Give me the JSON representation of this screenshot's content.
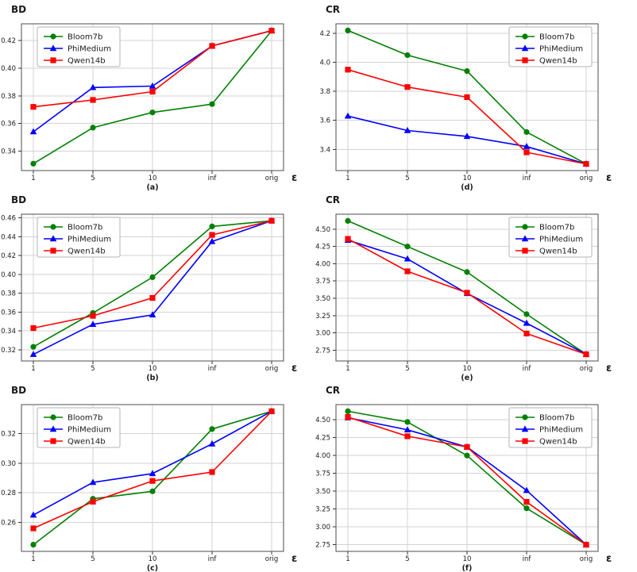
{
  "figure": {
    "background": "#ffffff",
    "grid_color": "#d3d3d3",
    "spine_color": "#4d4d4d",
    "tick_color": "#333333",
    "text_color": "#1a1a1a",
    "legend_entries": [
      {
        "label": "Bloom7b",
        "color": "#008000",
        "marker": "circle"
      },
      {
        "label": "PhiMedium",
        "color": "#0000ff",
        "marker": "triangle"
      },
      {
        "label": "Qwen14b",
        "color": "#ff0000",
        "marker": "square"
      }
    ]
  },
  "chart_data": [
    {
      "id": "a",
      "type": "line",
      "title": "BD",
      "xlabel": "ε",
      "caption": "(a)",
      "grid": true,
      "legend_position": "upper-left",
      "categories": [
        "1",
        "5",
        "10",
        "inf",
        "orig"
      ],
      "ylim": [
        0.326,
        0.432
      ],
      "yticks": [
        {
          "value": 0.34,
          "label": "0.34"
        },
        {
          "value": 0.36,
          "label": "0.36"
        },
        {
          "value": 0.38,
          "label": "0.38"
        },
        {
          "value": 0.4,
          "label": "0.40"
        },
        {
          "value": 0.42,
          "label": "0.42"
        }
      ],
      "series": [
        {
          "name": "Bloom7b",
          "color": "#008000",
          "marker": "circle",
          "values": [
            0.331,
            0.357,
            0.368,
            0.374,
            0.427
          ]
        },
        {
          "name": "PhiMedium",
          "color": "#0000ff",
          "marker": "triangle",
          "values": [
            0.354,
            0.386,
            0.387,
            0.416,
            0.427
          ]
        },
        {
          "name": "Qwen14b",
          "color": "#ff0000",
          "marker": "square",
          "values": [
            0.372,
            0.377,
            0.383,
            0.416,
            0.427
          ]
        }
      ]
    },
    {
      "id": "b",
      "type": "line",
      "title": "BD",
      "xlabel": "ε",
      "caption": "(b)",
      "grid": true,
      "legend_position": "upper-left",
      "categories": [
        "1",
        "5",
        "10",
        "inf",
        "orig"
      ],
      "ylim": [
        0.308,
        0.464
      ],
      "yticks": [
        {
          "value": 0.32,
          "label": "0.32"
        },
        {
          "value": 0.34,
          "label": "0.34"
        },
        {
          "value": 0.36,
          "label": "0.36"
        },
        {
          "value": 0.38,
          "label": "0.38"
        },
        {
          "value": 0.4,
          "label": "0.40"
        },
        {
          "value": 0.42,
          "label": "0.42"
        },
        {
          "value": 0.44,
          "label": "0.44"
        },
        {
          "value": 0.46,
          "label": "0.46"
        }
      ],
      "series": [
        {
          "name": "Bloom7b",
          "color": "#008000",
          "marker": "circle",
          "values": [
            0.323,
            0.359,
            0.397,
            0.451,
            0.457
          ]
        },
        {
          "name": "PhiMedium",
          "color": "#0000ff",
          "marker": "triangle",
          "values": [
            0.315,
            0.347,
            0.357,
            0.435,
            0.457
          ]
        },
        {
          "name": "Qwen14b",
          "color": "#ff0000",
          "marker": "square",
          "values": [
            0.343,
            0.356,
            0.375,
            0.442,
            0.457
          ]
        }
      ]
    },
    {
      "id": "c",
      "type": "line",
      "title": "BD",
      "xlabel": "ε",
      "caption": "(c)",
      "grid": true,
      "legend_position": "upper-left",
      "categories": [
        "1",
        "5",
        "10",
        "inf",
        "orig"
      ],
      "ylim": [
        0.2405,
        0.3395
      ],
      "yticks": [
        {
          "value": 0.26,
          "label": "0.26"
        },
        {
          "value": 0.28,
          "label": "0.28"
        },
        {
          "value": 0.3,
          "label": "0.30"
        },
        {
          "value": 0.32,
          "label": "0.32"
        }
      ],
      "series": [
        {
          "name": "Bloom7b",
          "color": "#008000",
          "marker": "circle",
          "values": [
            0.245,
            0.276,
            0.281,
            0.323,
            0.335
          ]
        },
        {
          "name": "PhiMedium",
          "color": "#0000ff",
          "marker": "triangle",
          "values": [
            0.265,
            0.287,
            0.293,
            0.313,
            0.335
          ]
        },
        {
          "name": "Qwen14b",
          "color": "#ff0000",
          "marker": "square",
          "values": [
            0.256,
            0.274,
            0.288,
            0.294,
            0.335
          ]
        }
      ]
    },
    {
      "id": "d",
      "type": "line",
      "title": "CR",
      "xlabel": "ε",
      "caption": "(d)",
      "grid": true,
      "legend_position": "upper-right",
      "categories": [
        "1",
        "5",
        "10",
        "inf",
        "orig"
      ],
      "ylim": [
        3.254,
        4.266
      ],
      "yticks": [
        {
          "value": 3.4,
          "label": "3.4"
        },
        {
          "value": 3.6,
          "label": "3.6"
        },
        {
          "value": 3.8,
          "label": "3.8"
        },
        {
          "value": 4.0,
          "label": "4.0"
        },
        {
          "value": 4.2,
          "label": "4.2"
        }
      ],
      "series": [
        {
          "name": "Bloom7b",
          "color": "#008000",
          "marker": "circle",
          "values": [
            4.22,
            4.05,
            3.94,
            3.52,
            3.3
          ]
        },
        {
          "name": "PhiMedium",
          "color": "#0000ff",
          "marker": "triangle",
          "values": [
            3.63,
            3.53,
            3.49,
            3.42,
            3.3
          ]
        },
        {
          "name": "Qwen14b",
          "color": "#ff0000",
          "marker": "square",
          "values": [
            3.95,
            3.83,
            3.76,
            3.38,
            3.3
          ]
        }
      ]
    },
    {
      "id": "e",
      "type": "line",
      "title": "CR",
      "xlabel": "ε",
      "caption": "(e)",
      "grid": true,
      "legend_position": "upper-right",
      "categories": [
        "1",
        "5",
        "10",
        "inf",
        "orig"
      ],
      "ylim": [
        2.5935,
        4.7165
      ],
      "yticks": [
        {
          "value": 2.75,
          "label": "2.75"
        },
        {
          "value": 3.0,
          "label": "3.00"
        },
        {
          "value": 3.25,
          "label": "3.25"
        },
        {
          "value": 3.5,
          "label": "3.50"
        },
        {
          "value": 3.75,
          "label": "3.75"
        },
        {
          "value": 4.0,
          "label": "4.00"
        },
        {
          "value": 4.25,
          "label": "4.25"
        },
        {
          "value": 4.5,
          "label": "4.50"
        }
      ],
      "series": [
        {
          "name": "Bloom7b",
          "color": "#008000",
          "marker": "circle",
          "values": [
            4.62,
            4.25,
            3.88,
            3.27,
            2.69
          ]
        },
        {
          "name": "PhiMedium",
          "color": "#0000ff",
          "marker": "triangle",
          "values": [
            4.34,
            4.07,
            3.57,
            3.14,
            2.69
          ]
        },
        {
          "name": "Qwen14b",
          "color": "#ff0000",
          "marker": "square",
          "values": [
            4.36,
            3.89,
            3.58,
            2.99,
            2.69
          ]
        }
      ]
    },
    {
      "id": "f",
      "type": "line",
      "title": "CR",
      "xlabel": "ε",
      "caption": "(f)",
      "grid": true,
      "legend_position": "upper-right",
      "categories": [
        "1",
        "5",
        "10",
        "inf",
        "orig"
      ],
      "ylim": [
        2.6565,
        4.7135
      ],
      "yticks": [
        {
          "value": 2.75,
          "label": "2.75"
        },
        {
          "value": 3.0,
          "label": "3.00"
        },
        {
          "value": 3.25,
          "label": "3.25"
        },
        {
          "value": 3.5,
          "label": "3.50"
        },
        {
          "value": 3.75,
          "label": "3.75"
        },
        {
          "value": 4.0,
          "label": "4.00"
        },
        {
          "value": 4.25,
          "label": "4.25"
        },
        {
          "value": 4.5,
          "label": "4.50"
        }
      ],
      "series": [
        {
          "name": "Bloom7b",
          "color": "#008000",
          "marker": "circle",
          "values": [
            4.62,
            4.47,
            4.0,
            3.26,
            2.75
          ]
        },
        {
          "name": "PhiMedium",
          "color": "#0000ff",
          "marker": "triangle",
          "values": [
            4.53,
            4.36,
            4.12,
            3.51,
            2.75
          ]
        },
        {
          "name": "Qwen14b",
          "color": "#ff0000",
          "marker": "square",
          "values": [
            4.54,
            4.27,
            4.12,
            3.35,
            2.75
          ]
        }
      ]
    }
  ]
}
